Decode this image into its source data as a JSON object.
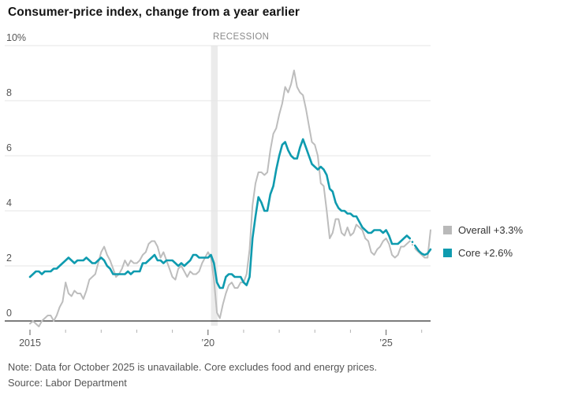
{
  "title": "Consumer-price index, change from a year earlier",
  "legend": [
    {
      "key": "overall",
      "label": "Overall +3.3%",
      "swatch": "#b9b9b9"
    },
    {
      "key": "core",
      "label": "Core +2.6%",
      "swatch": "#0f9baf"
    }
  ],
  "note": "Note: Data for October 2025 is unavailable. Core excludes food and energy prices.",
  "source": "Source: Labor Department",
  "colors": {
    "overall_line": "#bdbdbd",
    "core_line": "#0f9baf",
    "grid": "#e5e5e5",
    "zero_axis": "#2e2e2e",
    "recession_band": "#ebebeb",
    "axis_text": "#555555",
    "recession_text": "#8a8a8a",
    "minor_tick": "#b3b3b3",
    "major_tick": "#777777"
  },
  "chart_data": {
    "type": "line",
    "title": "Consumer-price index, change from a year earlier",
    "x_unit": "month",
    "x_range": [
      "2015-01",
      "2026-04"
    ],
    "ylabel": "change from a year earlier, %",
    "ylim": [
      -0.6,
      10.3
    ],
    "grid": true,
    "legend_position": "right",
    "recession": {
      "label": "RECESSION",
      "from": "2020-02",
      "to": "2020-04"
    },
    "gap": {
      "month": "2025-10",
      "reason": "Data for October 2025 is unavailable"
    },
    "y_axis": {
      "ticks": [
        {
          "value": 10,
          "label": "10%"
        },
        {
          "value": 8,
          "label": "8"
        },
        {
          "value": 6,
          "label": "6"
        },
        {
          "value": 4,
          "label": "4"
        },
        {
          "value": 2,
          "label": "2"
        },
        {
          "value": 0,
          "label": "0"
        }
      ]
    },
    "x_axis": {
      "major_ticks": [
        {
          "label": "2015",
          "year": 2015
        },
        {
          "label": "’20",
          "year": 2020
        },
        {
          "label": "’25",
          "year": 2025
        }
      ],
      "minor_tick_years": [
        2016,
        2017,
        2018,
        2019,
        2021,
        2022,
        2023,
        2024,
        2026
      ]
    },
    "series": [
      {
        "name": "Overall",
        "end_label": "Overall +3.3%",
        "color": "#bdbdbd",
        "line_width": 2,
        "values": [
          -0.1,
          0.0,
          -0.1,
          -0.2,
          0.0,
          0.1,
          0.2,
          0.2,
          0.0,
          0.2,
          0.5,
          0.7,
          1.4,
          1.0,
          0.9,
          1.1,
          1.0,
          1.0,
          0.8,
          1.1,
          1.5,
          1.6,
          1.7,
          2.1,
          2.5,
          2.7,
          2.4,
          2.2,
          1.9,
          1.6,
          1.7,
          1.9,
          2.2,
          2.0,
          2.2,
          2.1,
          2.1,
          2.2,
          2.4,
          2.5,
          2.8,
          2.9,
          2.9,
          2.7,
          2.3,
          2.5,
          2.2,
          1.9,
          1.6,
          1.5,
          1.9,
          2.0,
          1.8,
          1.6,
          1.8,
          1.7,
          1.7,
          1.8,
          2.1,
          2.3,
          2.5,
          2.3,
          1.5,
          0.3,
          0.1,
          0.6,
          1.0,
          1.3,
          1.4,
          1.2,
          1.2,
          1.4,
          1.4,
          1.7,
          2.6,
          4.2,
          5.0,
          5.4,
          5.4,
          5.3,
          5.4,
          6.2,
          6.8,
          7.0,
          7.5,
          7.9,
          8.5,
          8.3,
          8.6,
          9.1,
          8.5,
          8.3,
          8.2,
          7.7,
          7.1,
          6.5,
          6.4,
          6.0,
          5.0,
          4.9,
          4.0,
          3.0,
          3.2,
          3.7,
          3.7,
          3.2,
          3.1,
          3.4,
          3.1,
          3.2,
          3.5,
          3.4,
          3.3,
          3.0,
          2.9,
          2.5,
          2.4,
          2.6,
          2.7,
          2.9,
          3.0,
          2.8,
          2.4,
          2.3,
          2.4,
          2.7,
          2.7,
          2.8,
          2.9,
          null,
          2.6,
          2.5,
          2.4,
          2.3,
          2.3,
          3.3
        ]
      },
      {
        "name": "Core",
        "end_label": "Core +2.6%",
        "color": "#0f9baf",
        "line_width": 2.6,
        "values": [
          1.6,
          1.7,
          1.8,
          1.8,
          1.7,
          1.8,
          1.8,
          1.8,
          1.9,
          1.9,
          2.0,
          2.1,
          2.2,
          2.3,
          2.2,
          2.1,
          2.2,
          2.2,
          2.2,
          2.3,
          2.2,
          2.1,
          2.1,
          2.2,
          2.3,
          2.2,
          2.0,
          1.9,
          1.7,
          1.7,
          1.7,
          1.7,
          1.7,
          1.8,
          1.7,
          1.8,
          1.8,
          1.8,
          2.1,
          2.1,
          2.2,
          2.3,
          2.4,
          2.2,
          2.2,
          2.1,
          2.2,
          2.2,
          2.2,
          2.1,
          2.0,
          2.1,
          2.0,
          2.1,
          2.2,
          2.4,
          2.4,
          2.3,
          2.3,
          2.3,
          2.3,
          2.4,
          2.1,
          1.4,
          1.2,
          1.2,
          1.6,
          1.7,
          1.7,
          1.6,
          1.6,
          1.6,
          1.4,
          1.3,
          1.6,
          3.0,
          3.8,
          4.5,
          4.3,
          4.0,
          4.0,
          4.6,
          4.9,
          5.5,
          6.0,
          6.4,
          6.5,
          6.2,
          6.0,
          5.9,
          5.9,
          6.3,
          6.6,
          6.3,
          6.0,
          5.7,
          5.6,
          5.5,
          5.6,
          5.5,
          5.3,
          4.8,
          4.7,
          4.3,
          4.1,
          4.0,
          4.0,
          3.9,
          3.9,
          3.8,
          3.8,
          3.6,
          3.4,
          3.3,
          3.2,
          3.2,
          3.3,
          3.3,
          3.3,
          3.2,
          3.3,
          3.1,
          2.8,
          2.8,
          2.8,
          2.9,
          3.0,
          3.1,
          3.0,
          null,
          2.7,
          2.55,
          2.45,
          2.4,
          2.45,
          2.6
        ]
      }
    ]
  }
}
